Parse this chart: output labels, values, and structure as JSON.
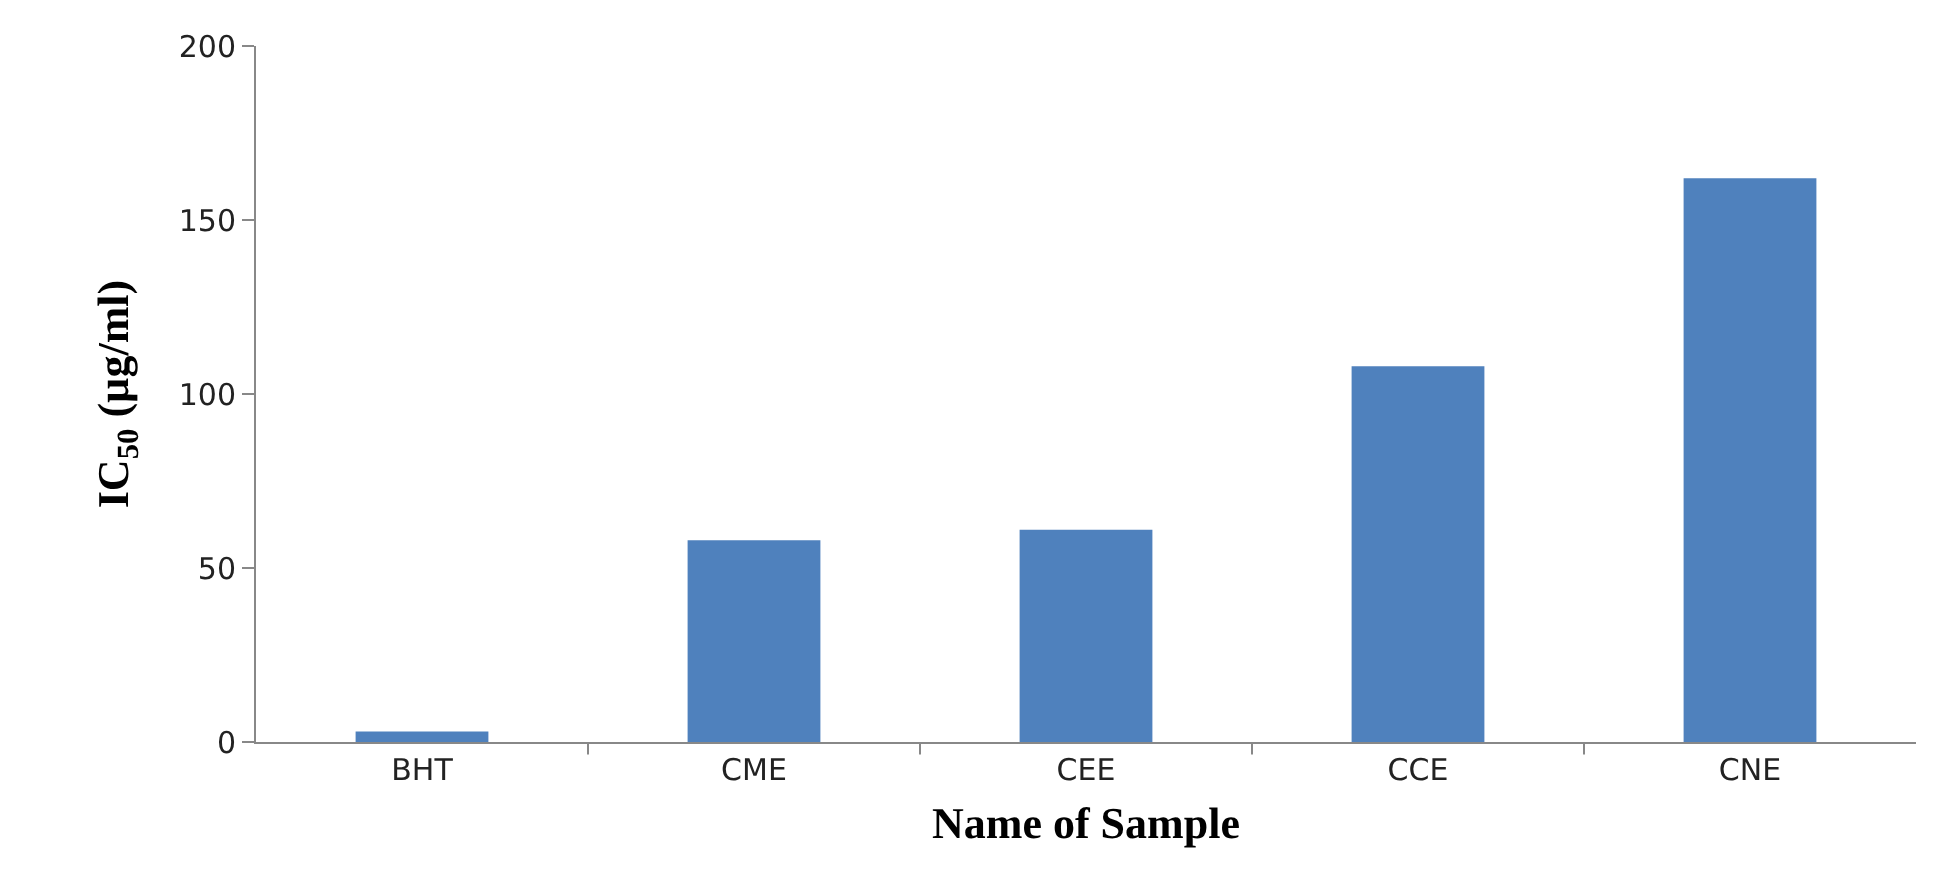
{
  "chart_data": {
    "type": "bar",
    "xlabel": "Name of Sample",
    "ylabel": "IC$_{50}$ (µg/ml)",
    "categories": [
      "BHT",
      "CME",
      "CEE",
      "CCE",
      "CNE"
    ],
    "values": [
      3,
      58,
      61,
      108,
      162
    ],
    "color": "#4f81bd",
    "ylim": [
      0,
      200
    ],
    "yticks": [
      0,
      50,
      100,
      150,
      200
    ],
    "grid": false
  }
}
